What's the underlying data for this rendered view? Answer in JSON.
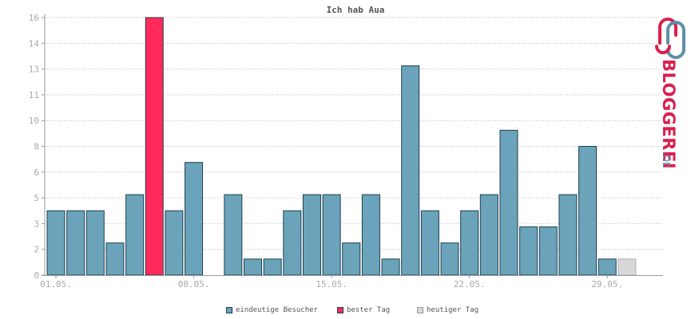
{
  "colors": {
    "bar": "#6aa3ba",
    "bar_stroke": "#1f4050",
    "best": "#ff2a5a",
    "today": "#d8d8d8",
    "today_stroke": "#b0b0b0",
    "grid": "#bbbbbb",
    "axis": "#999999",
    "tick_text": "#aaaaaa",
    "logo_red": "#d9204f",
    "logo_blue": "#5e8fa6"
  },
  "logo": {
    "brand": "BLOGGEREI",
    "suffix": ".DE"
  },
  "chart_data": {
    "type": "bar",
    "title": "Ich hab Aua",
    "xlabel": "",
    "ylabel": "",
    "ylim": [
      0,
      16
    ],
    "y_ticks": [
      "0",
      "2",
      "3",
      "5",
      "6",
      "8",
      "10",
      "11",
      "13",
      "14",
      "16"
    ],
    "y_tick_values": [
      0,
      1.6,
      3.2,
      4.8,
      6.4,
      8,
      9.6,
      11.2,
      12.8,
      14.4,
      16
    ],
    "x_ticks": [
      {
        "label": "01.05.",
        "index": 0
      },
      {
        "label": "08.05.",
        "index": 7
      },
      {
        "label": "15.05.",
        "index": 14
      },
      {
        "label": "22.05.",
        "index": 21
      },
      {
        "label": "29.05.",
        "index": 28
      }
    ],
    "values": [
      4,
      4,
      4,
      2,
      5,
      16,
      4,
      7,
      0,
      5,
      1,
      1,
      4,
      5,
      5,
      2,
      5,
      1,
      13,
      4,
      2,
      4,
      5,
      9,
      3,
      3,
      5,
      8,
      1,
      1
    ],
    "best_index": 5,
    "today_index": 29,
    "grid": true,
    "legend_position": "bottom",
    "legend": [
      {
        "label": "eindeutige Besucher",
        "color": "#6aa3ba"
      },
      {
        "label": "bester Tag",
        "color": "#ff2a5a"
      },
      {
        "label": "heutiger Tag",
        "color": "#d8d8d8"
      }
    ]
  }
}
